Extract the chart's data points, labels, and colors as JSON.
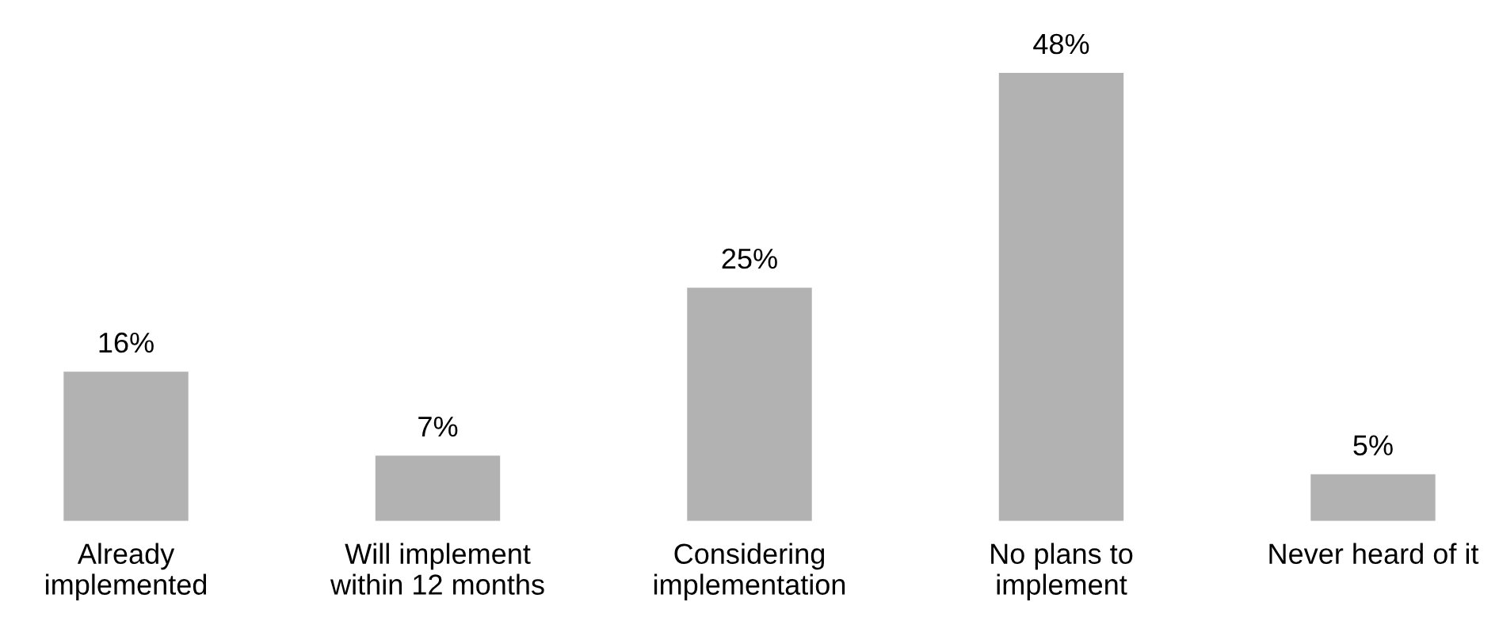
{
  "chart_data": {
    "type": "bar",
    "categories": [
      "Already\nimplemented",
      "Will implement\nwithin 12 months",
      "Considering\nimplementation",
      "No plans to\nimplement",
      "Never heard of it"
    ],
    "values": [
      16,
      7,
      25,
      48,
      5
    ],
    "value_labels": [
      "16%",
      "7%",
      "25%",
      "48%",
      "5%"
    ],
    "color": "#b2b2b2",
    "tick_labels": "x",
    "grid": false,
    "legend": false
  }
}
